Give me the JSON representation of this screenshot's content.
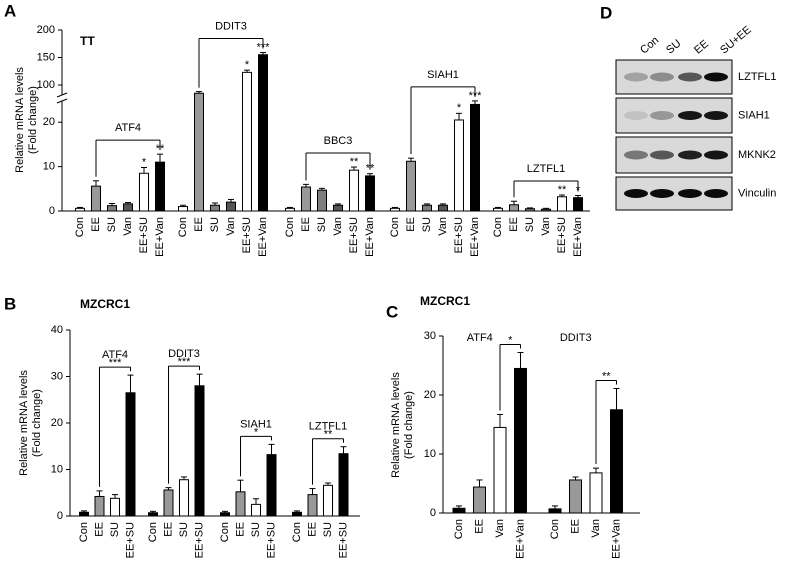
{
  "chart_data": [
    {
      "type": "bar",
      "panel": "A",
      "title": "TT",
      "y_label": [
        "Relative mRNA levels",
        "(Fold change)"
      ],
      "categories": [
        "Con",
        "EE",
        "SU",
        "Van",
        "EE+SU",
        "EE+Van"
      ],
      "colors": [
        "#ffffff",
        "#999999",
        "#7f7f7f",
        "#555555",
        "#ffffff",
        "#000000"
      ],
      "ylim": [
        0,
        200
      ],
      "axis_break": [
        25,
        80
      ],
      "yticks": [
        0,
        10,
        20,
        100,
        150,
        200
      ],
      "groups": [
        {
          "name": "ATF4",
          "values": [
            0.6,
            5.6,
            1.2,
            1.6,
            8.5,
            11
          ],
          "errors": [
            0.2,
            1.2,
            0.5,
            0.3,
            1.3,
            1.8
          ],
          "significance": [
            null,
            null,
            null,
            null,
            "*",
            "**"
          ]
        },
        {
          "name": "DDIT3",
          "values": [
            1,
            85,
            1.3,
            2,
            123,
            155
          ],
          "errors": [
            0.3,
            3,
            0.5,
            0.6,
            4,
            4
          ],
          "significance": [
            null,
            null,
            null,
            null,
            "*",
            "***"
          ]
        },
        {
          "name": "BBC3",
          "values": [
            0.6,
            5.4,
            4.7,
            1.3,
            9.2,
            7.9
          ],
          "errors": [
            0.2,
            0.6,
            0.4,
            0.3,
            0.7,
            0.5
          ],
          "significance": [
            null,
            null,
            null,
            null,
            "**",
            "**"
          ]
        },
        {
          "name": "SIAH1",
          "values": [
            0.6,
            11.2,
            1.3,
            1.3,
            20.5,
            24
          ],
          "errors": [
            0.2,
            0.7,
            0.3,
            0.3,
            1.5,
            0.8
          ],
          "significance": [
            null,
            null,
            null,
            null,
            "*",
            "***"
          ]
        },
        {
          "name": "LZTFL1",
          "values": [
            0.6,
            1.4,
            0.5,
            0.4,
            3.2,
            3.0
          ],
          "errors": [
            0.2,
            0.8,
            0.2,
            0.2,
            0.4,
            0.5
          ],
          "significance": [
            null,
            null,
            null,
            null,
            "**",
            "*"
          ]
        }
      ]
    },
    {
      "type": "bar",
      "panel": "B",
      "title": "MZCRC1",
      "y_label": [
        "Relative mRNA levels",
        "(Fold change)"
      ],
      "categories": [
        "Con",
        "EE",
        "SU",
        "EE+SU"
      ],
      "colors": [
        "#000000",
        "#999999",
        "#ffffff",
        "#000000"
      ],
      "ylim": [
        0,
        40
      ],
      "yticks": [
        0,
        10,
        20,
        30,
        40
      ],
      "groups": [
        {
          "name": "ATF4",
          "values": [
            0.8,
            4.2,
            3.8,
            26.5
          ],
          "errors": [
            0.3,
            1.2,
            0.8,
            3.8
          ],
          "significance": [
            null,
            null,
            null,
            "***"
          ]
        },
        {
          "name": "DDIT3",
          "values": [
            0.7,
            5.6,
            7.8,
            28
          ],
          "errors": [
            0.3,
            0.5,
            0.6,
            2.5
          ],
          "significance": [
            null,
            null,
            null,
            "***"
          ]
        },
        {
          "name": "SIAH1",
          "values": [
            0.7,
            5.2,
            2.5,
            13.2
          ],
          "errors": [
            0.3,
            2.5,
            1.2,
            2.2
          ],
          "significance": [
            null,
            null,
            null,
            "*"
          ]
        },
        {
          "name": "LZTFL1",
          "values": [
            0.8,
            4.6,
            6.6,
            13.4
          ],
          "errors": [
            0.3,
            1.3,
            0.5,
            1.5
          ],
          "significance": [
            null,
            null,
            null,
            "**"
          ]
        }
      ]
    },
    {
      "type": "bar",
      "panel": "C",
      "title": "MZCRC1",
      "y_label": [
        "Relative mRNA levels",
        "(Fold change)"
      ],
      "categories": [
        "Con",
        "EE",
        "Van",
        "EE+Van"
      ],
      "colors": [
        "#000000",
        "#999999",
        "#ffffff",
        "#000000"
      ],
      "ylim": [
        0,
        30
      ],
      "yticks": [
        0,
        10,
        20,
        30
      ],
      "groups": [
        {
          "name": "ATF4",
          "values": [
            0.8,
            4.4,
            14.5,
            24.5
          ],
          "errors": [
            0.4,
            1.2,
            2.2,
            2.7
          ],
          "significance": [
            null,
            null,
            null,
            "*"
          ]
        },
        {
          "name": "DDIT3",
          "values": [
            0.7,
            5.6,
            6.8,
            17.5
          ],
          "errors": [
            0.5,
            0.5,
            0.8,
            3.6
          ],
          "significance": [
            null,
            null,
            null,
            "**"
          ]
        }
      ]
    }
  ],
  "blot": {
    "panel": "D",
    "lanes": [
      "Con",
      "SU",
      "EE",
      "SU+EE"
    ],
    "rows": [
      "LZTFL1",
      "SIAH1",
      "MKNK2",
      "Vinculin"
    ]
  }
}
